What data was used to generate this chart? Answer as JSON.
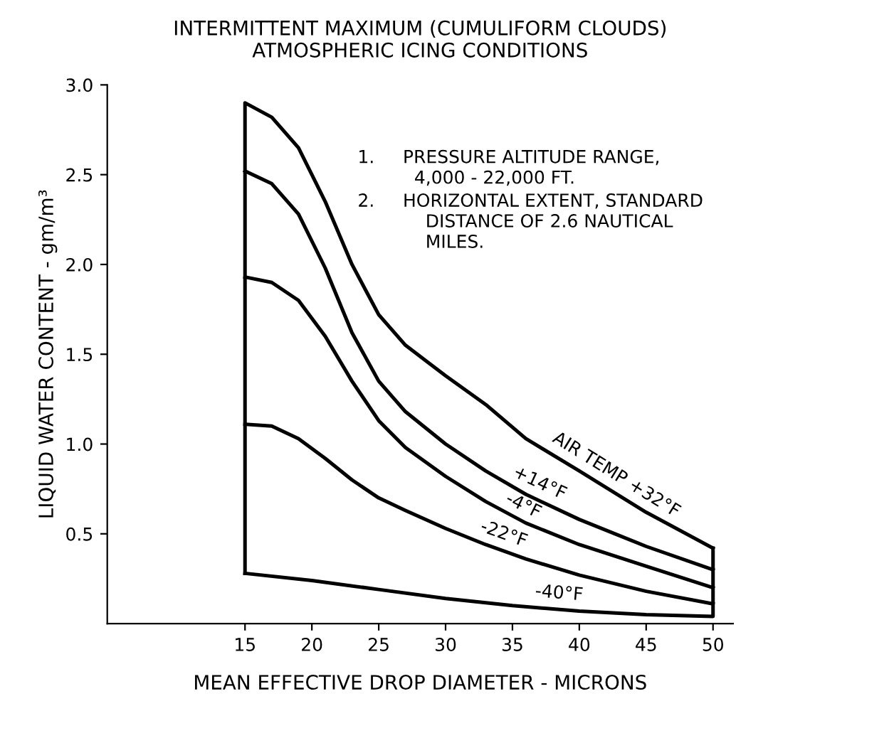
{
  "chart_data": {
    "type": "line",
    "title": "INTERMITTENT MAXIMUM (CUMULIFORM CLOUDS)\nATMOSPHERIC ICING CONDITIONS",
    "xlabel": "MEAN EFFECTIVE DROP DIAMETER - MICRONS",
    "ylabel": "LIQUID WATER CONTENT - gm/m³",
    "xlim": [
      4.7,
      51.5
    ],
    "ylim": [
      0,
      3.0
    ],
    "xticks": [
      15,
      20,
      25,
      30,
      35,
      40,
      45,
      50
    ],
    "yticks": [
      {
        "value": 0.5,
        "label": "0.5"
      },
      {
        "value": 1.0,
        "label": "1.0"
      },
      {
        "value": 1.5,
        "label": "1.5"
      },
      {
        "value": 2.0,
        "label": "2.0"
      },
      {
        "value": 2.5,
        "label": "2.5"
      },
      {
        "value": 3.0,
        "label": "3.0"
      }
    ],
    "marker": "none",
    "line_style": "solid",
    "series": [
      {
        "name": "AIR TEMP +32°F",
        "color": "#000000",
        "x": [
          15,
          15,
          17,
          19,
          21,
          23,
          25,
          27,
          30,
          33,
          36,
          40,
          45,
          50
        ],
        "values": [
          0.28,
          2.9,
          2.82,
          2.65,
          2.35,
          2.0,
          1.72,
          1.55,
          1.38,
          1.22,
          1.03,
          0.85,
          0.62,
          0.42
        ]
      },
      {
        "name": "+14°F",
        "color": "#000000",
        "x": [
          15,
          17,
          19,
          21,
          23,
          25,
          27,
          30,
          33,
          36,
          40,
          45,
          50
        ],
        "values": [
          2.52,
          2.45,
          2.28,
          1.98,
          1.62,
          1.35,
          1.18,
          1.0,
          0.85,
          0.72,
          0.58,
          0.43,
          0.3
        ]
      },
      {
        "name": "-4°F",
        "color": "#000000",
        "x": [
          15,
          17,
          19,
          21,
          23,
          25,
          27,
          30,
          33,
          36,
          40,
          45,
          50
        ],
        "values": [
          1.93,
          1.9,
          1.8,
          1.6,
          1.35,
          1.13,
          0.98,
          0.82,
          0.68,
          0.56,
          0.44,
          0.32,
          0.2
        ]
      },
      {
        "name": "-22°F",
        "color": "#000000",
        "x": [
          15,
          17,
          19,
          21,
          23,
          25,
          27,
          30,
          33,
          36,
          40,
          45,
          50
        ],
        "values": [
          1.11,
          1.1,
          1.03,
          0.92,
          0.8,
          0.7,
          0.63,
          0.53,
          0.44,
          0.36,
          0.27,
          0.18,
          0.11
        ]
      },
      {
        "name": "-40°F",
        "color": "#000000",
        "x": [
          15,
          20,
          25,
          30,
          35,
          40,
          45,
          50,
          50
        ],
        "values": [
          0.28,
          0.24,
          0.19,
          0.14,
          0.1,
          0.07,
          0.05,
          0.04,
          0.42
        ]
      }
    ],
    "annotations": [
      "1.     PRESSURE ALTITUDE RANGE,\n          4,000 - 22,000 FT.",
      "2.     HORIZONTAL EXTENT, STANDARD\n            DISTANCE OF 2.6 NAUTICAL\n            MILES."
    ]
  }
}
